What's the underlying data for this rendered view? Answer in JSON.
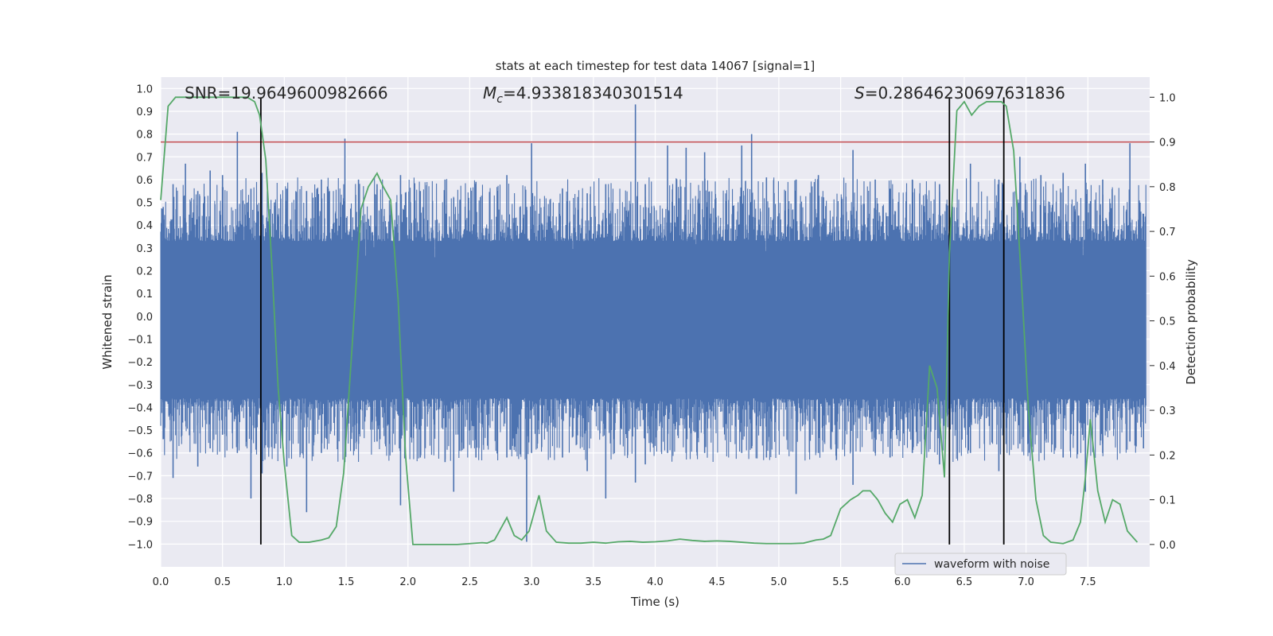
{
  "chart_data": {
    "type": "line",
    "title": "stats at each timestep for test data 14067 [signal=1]",
    "xlabel": "Time (s)",
    "ylabel": "Whitened strain",
    "y2label": "Detection probability",
    "xlim": [
      0.0,
      8.0
    ],
    "ylim": [
      -1.1,
      1.05
    ],
    "y2lim": [
      -0.05,
      1.045
    ],
    "grid": true,
    "legend": {
      "position": "lower-right",
      "entries": [
        "waveform with noise"
      ]
    },
    "xticks": [
      "0.0",
      "0.5",
      "1.0",
      "1.5",
      "2.0",
      "2.5",
      "3.0",
      "3.5",
      "4.0",
      "4.5",
      "5.0",
      "5.5",
      "6.0",
      "6.5",
      "7.0",
      "7.5"
    ],
    "yticks": [
      "1.0",
      "0.9",
      "0.8",
      "0.7",
      "0.6",
      "0.5",
      "0.4",
      "0.3",
      "0.2",
      "0.1",
      "0.0",
      "−0.1",
      "−0.2",
      "−0.3",
      "−0.4",
      "−0.5",
      "−0.6",
      "−0.7",
      "−0.8",
      "−0.9",
      "−1.0"
    ],
    "y2ticks": [
      "1.0",
      "0.9",
      "0.8",
      "0.7",
      "0.6",
      "0.5",
      "0.4",
      "0.3",
      "0.2",
      "0.1",
      "0.0"
    ],
    "annotations": {
      "snr": "SNR=19.9649600982666",
      "mc_symbol": "M",
      "mc_sub": "c",
      "mc_value": "=4.933818340301514",
      "s_symbol": "S",
      "s_value": "=0.28646230697631836"
    },
    "threshold": {
      "y2": 0.9,
      "color": "#c44e52"
    },
    "vertical_lines": [
      0.81,
      6.38,
      6.82
    ],
    "waveform": {
      "name": "waveform with noise",
      "color": "#4c72b0",
      "envelope": 0.33,
      "spikes": [
        [
          0.02,
          0.48,
          -0.54
        ],
        [
          0.1,
          0.58,
          -0.71
        ],
        [
          0.2,
          0.67,
          -0.46
        ],
        [
          0.3,
          0.55,
          -0.66
        ],
        [
          0.4,
          0.64,
          -0.58
        ],
        [
          0.5,
          0.62,
          -0.52
        ],
        [
          0.62,
          0.81,
          -0.6
        ],
        [
          0.73,
          0.56,
          -0.8
        ],
        [
          0.82,
          0.63,
          -0.69
        ],
        [
          0.92,
          0.5,
          -0.58
        ],
        [
          1.02,
          0.56,
          -0.66
        ],
        [
          1.18,
          0.55,
          -0.86
        ],
        [
          1.3,
          0.6,
          -0.6
        ],
        [
          1.49,
          0.78,
          -0.64
        ],
        [
          1.6,
          0.6,
          -0.56
        ],
        [
          1.75,
          0.58,
          -0.55
        ],
        [
          1.94,
          0.62,
          -0.83
        ],
        [
          2.1,
          0.55,
          -0.62
        ],
        [
          2.3,
          0.6,
          -0.64
        ],
        [
          2.37,
          0.52,
          -0.77
        ],
        [
          2.55,
          0.59,
          -0.62
        ],
        [
          2.8,
          0.62,
          -0.62
        ],
        [
          2.96,
          0.48,
          -0.99
        ],
        [
          3.0,
          0.76,
          -0.6
        ],
        [
          3.25,
          0.56,
          -0.62
        ],
        [
          3.45,
          0.54,
          -0.68
        ],
        [
          3.6,
          0.58,
          -0.8
        ],
        [
          3.84,
          0.93,
          -0.73
        ],
        [
          3.92,
          0.58,
          -0.65
        ],
        [
          4.1,
          0.75,
          -0.6
        ],
        [
          4.25,
          0.74,
          -0.6
        ],
        [
          4.4,
          0.72,
          -0.6
        ],
        [
          4.7,
          0.75,
          -0.6
        ],
        [
          4.78,
          0.8,
          -0.58
        ],
        [
          4.9,
          0.61,
          -0.62
        ],
        [
          5.14,
          0.6,
          -0.78
        ],
        [
          5.32,
          0.62,
          -0.6
        ],
        [
          5.6,
          0.73,
          -0.74
        ],
        [
          5.78,
          0.6,
          -0.6
        ],
        [
          5.9,
          0.56,
          -0.62
        ],
        [
          6.08,
          0.6,
          -0.6
        ],
        [
          6.3,
          0.58,
          -0.65
        ],
        [
          6.55,
          0.67,
          -0.6
        ],
        [
          6.78,
          0.6,
          -0.68
        ],
        [
          6.95,
          0.7,
          -0.56
        ],
        [
          7.12,
          0.62,
          -0.6
        ],
        [
          7.3,
          0.63,
          -0.62
        ],
        [
          7.48,
          0.67,
          -0.77
        ],
        [
          7.62,
          0.6,
          -0.6
        ],
        [
          7.84,
          0.76,
          -0.55
        ],
        [
          7.95,
          0.45,
          -0.58
        ]
      ]
    },
    "probability": {
      "color": "#55a868",
      "x": [
        0.0,
        0.06,
        0.12,
        0.2,
        0.3,
        0.4,
        0.5,
        0.6,
        0.7,
        0.76,
        0.8,
        0.85,
        0.9,
        0.95,
        1.0,
        1.06,
        1.12,
        1.2,
        1.3,
        1.36,
        1.42,
        1.48,
        1.55,
        1.62,
        1.68,
        1.75,
        1.8,
        1.86,
        1.92,
        1.98,
        2.04,
        2.1,
        2.2,
        2.3,
        2.4,
        2.5,
        2.6,
        2.64,
        2.7,
        2.76,
        2.8,
        2.86,
        2.92,
        2.98,
        3.06,
        3.12,
        3.2,
        3.3,
        3.4,
        3.5,
        3.6,
        3.7,
        3.8,
        3.9,
        4.0,
        4.1,
        4.2,
        4.3,
        4.4,
        4.5,
        4.6,
        4.7,
        4.8,
        4.9,
        5.0,
        5.1,
        5.2,
        5.3,
        5.36,
        5.42,
        5.5,
        5.58,
        5.64,
        5.68,
        5.74,
        5.8,
        5.86,
        5.92,
        5.98,
        6.04,
        6.1,
        6.16,
        6.22,
        6.28,
        6.34,
        6.38,
        6.44,
        6.5,
        6.56,
        6.62,
        6.68,
        6.74,
        6.8,
        6.84,
        6.9,
        6.96,
        7.02,
        7.08,
        7.14,
        7.2,
        7.3,
        7.38,
        7.44,
        7.48,
        7.52,
        7.58,
        7.64,
        7.7,
        7.76,
        7.82,
        7.9
      ],
      "y": [
        0.77,
        0.98,
        1.0,
        1.0,
        1.0,
        1.0,
        1.0,
        1.0,
        1.0,
        0.99,
        0.96,
        0.86,
        0.62,
        0.35,
        0.18,
        0.02,
        0.005,
        0.005,
        0.01,
        0.015,
        0.04,
        0.16,
        0.45,
        0.75,
        0.8,
        0.83,
        0.8,
        0.77,
        0.55,
        0.2,
        0.0,
        0.0,
        0.0,
        0.0,
        0.0,
        0.002,
        0.004,
        0.003,
        0.01,
        0.04,
        0.06,
        0.02,
        0.01,
        0.03,
        0.11,
        0.03,
        0.005,
        0.003,
        0.003,
        0.005,
        0.003,
        0.006,
        0.007,
        0.005,
        0.006,
        0.008,
        0.012,
        0.009,
        0.007,
        0.008,
        0.007,
        0.005,
        0.003,
        0.002,
        0.002,
        0.002,
        0.003,
        0.01,
        0.012,
        0.02,
        0.08,
        0.1,
        0.11,
        0.12,
        0.12,
        0.1,
        0.07,
        0.05,
        0.09,
        0.1,
        0.06,
        0.11,
        0.4,
        0.35,
        0.15,
        0.65,
        0.97,
        0.99,
        0.96,
        0.98,
        0.99,
        0.99,
        0.99,
        0.98,
        0.88,
        0.6,
        0.3,
        0.1,
        0.02,
        0.005,
        0.002,
        0.01,
        0.05,
        0.15,
        0.28,
        0.12,
        0.05,
        0.1,
        0.09,
        0.03,
        0.005
      ]
    }
  }
}
